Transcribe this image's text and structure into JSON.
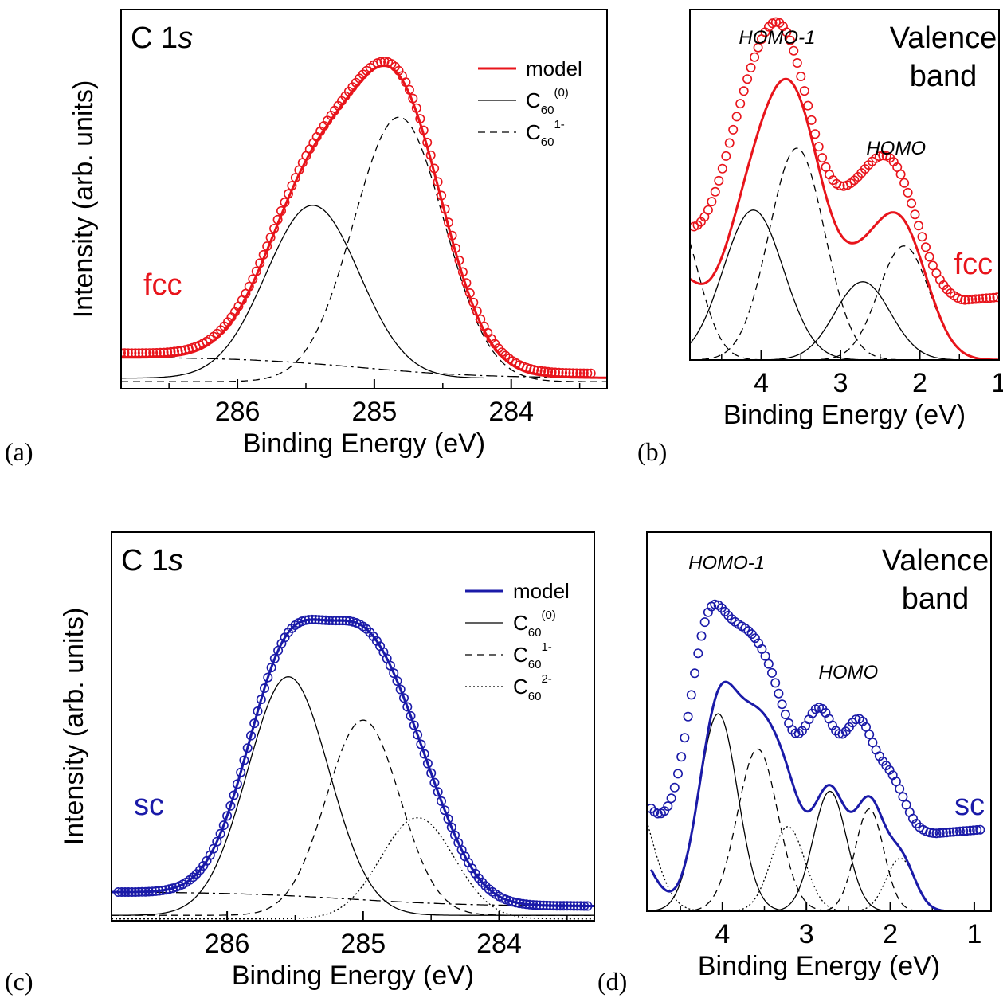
{
  "colors": {
    "fcc": "#e8141b",
    "sc": "#1a1aa8",
    "component": "#000000"
  },
  "panel_labels": [
    "(a)",
    "(b)",
    "(c)",
    "(d)"
  ],
  "chart_data": [
    {
      "id": "a",
      "type": "line",
      "title_main": "C 1",
      "title_italic": "s",
      "sample_label": "fcc",
      "xlabel": "Binding Energy (eV)",
      "ylabel": "Intensity (arb. units)",
      "x_reversed": true,
      "xlim": [
        286.85,
        283.3
      ],
      "ylim": [
        0,
        1.0
      ],
      "xticks": [
        286,
        285,
        284
      ],
      "xtick_labels": [
        "286",
        "285",
        "284"
      ],
      "minor_xticks": [
        286.5,
        285.5,
        284.5,
        283.5
      ],
      "legend": [
        {
          "label": "model",
          "sub": "",
          "sup": "",
          "style": "solid-color"
        },
        {
          "label": "C",
          "sub": "60",
          "sup": "(0)",
          "style": "solid"
        },
        {
          "label": "C",
          "sub": "60",
          "sup": "1-",
          "style": "dashed"
        }
      ],
      "components": [
        {
          "kind": "gauss",
          "center": 285.45,
          "amp": 0.49,
          "sigma": 0.34,
          "base": 0.03,
          "style": "solid",
          "xrange": [
            286.85,
            284.2
          ]
        },
        {
          "kind": "gauss",
          "center": 284.82,
          "amp": 0.75,
          "sigma": 0.33,
          "base": 0.02,
          "style": "dashed",
          "xrange": [
            286.85,
            283.3
          ]
        },
        {
          "kind": "background",
          "left": 0.09,
          "right": 0.03,
          "center": 285.1,
          "width": 0.45,
          "style": "dashdot",
          "xrange": [
            286.85,
            283.3
          ]
        }
      ],
      "model_style": "solid-color",
      "data_points": "model-plus-offset",
      "data_offset": 0.012,
      "data_start": 286.85,
      "data_end": 283.4,
      "data_step": 0.026
    },
    {
      "id": "b",
      "type": "line",
      "title_lines": [
        "Valence",
        "band"
      ],
      "sample_label": "fcc",
      "xlabel": "Binding Energy (eV)",
      "ylabel": "",
      "x_reversed": true,
      "xlim": [
        4.9,
        1.0
      ],
      "ylim": [
        0,
        1.0
      ],
      "xticks": [
        4,
        3,
        2,
        1
      ],
      "xtick_labels": [
        "4",
        "3",
        "2",
        "1"
      ],
      "minor_xticks": [
        4.5,
        3.5,
        2.5,
        1.5
      ],
      "annotations": [
        {
          "text": "HOMO-1",
          "x": 3.8,
          "y": 0.97
        },
        {
          "text": "HOMO",
          "x": 2.3,
          "y": 0.63
        }
      ],
      "components": [
        {
          "kind": "gauss",
          "center": 4.1,
          "amp": 0.46,
          "sigma": 0.38,
          "base": 0.0,
          "style": "solid",
          "xrange": [
            4.9,
            1.0
          ]
        },
        {
          "kind": "gauss",
          "center": 2.72,
          "amp": 0.24,
          "sigma": 0.35,
          "base": 0.0,
          "style": "solid",
          "xrange": [
            4.9,
            1.0
          ]
        },
        {
          "kind": "gauss",
          "center": 3.55,
          "amp": 0.65,
          "sigma": 0.35,
          "base": 0.0,
          "style": "dashed",
          "xrange": [
            4.9,
            1.0
          ]
        },
        {
          "kind": "gauss",
          "center": 2.2,
          "amp": 0.35,
          "sigma": 0.32,
          "base": 0.0,
          "style": "dashed",
          "xrange": [
            4.9,
            1.0
          ]
        },
        {
          "kind": "gauss",
          "center": 5.1,
          "amp": 0.45,
          "sigma": 0.3,
          "base": 0.0,
          "style": "dashed",
          "xrange": [
            4.9,
            1.0
          ]
        }
      ],
      "model_style": "solid-color",
      "model_xrange": [
        4.9,
        1.0
      ],
      "data_points": "sum-shifted",
      "data_offset": 0.155,
      "data_start": 4.85,
      "data_end": 1.0,
      "data_step": 0.045
    },
    {
      "id": "c",
      "type": "line",
      "title_main": "C 1",
      "title_italic": "s",
      "sample_label": "sc",
      "xlabel": "Binding Energy (eV)",
      "ylabel": "Intensity (arb. units)",
      "x_reversed": true,
      "xlim": [
        286.85,
        283.3
      ],
      "ylim": [
        0,
        1.0
      ],
      "xticks": [
        286,
        285,
        284
      ],
      "xtick_labels": [
        "286",
        "285",
        "284"
      ],
      "minor_xticks": [
        286.5,
        285.5,
        284.5,
        283.5
      ],
      "legend": [
        {
          "label": "model",
          "sub": "",
          "sup": "",
          "style": "solid-color"
        },
        {
          "label": "C",
          "sub": "60",
          "sup": "(0)",
          "style": "solid"
        },
        {
          "label": "C",
          "sub": "60",
          "sup": "1-",
          "style": "dashed"
        },
        {
          "label": "C",
          "sub": "60",
          "sup": "2-",
          "style": "dotted"
        }
      ],
      "components": [
        {
          "kind": "gauss",
          "center": 285.55,
          "amp": 0.66,
          "sigma": 0.3,
          "base": 0.015,
          "style": "solid",
          "xrange": [
            286.85,
            283.3
          ]
        },
        {
          "kind": "gauss",
          "center": 285.0,
          "amp": 0.54,
          "sigma": 0.27,
          "base": 0.015,
          "style": "dashed",
          "xrange": [
            286.85,
            283.3
          ]
        },
        {
          "kind": "gauss",
          "center": 284.6,
          "amp": 0.28,
          "sigma": 0.27,
          "base": 0.005,
          "style": "dotted",
          "xrange": [
            286.85,
            283.3
          ]
        },
        {
          "kind": "background",
          "left": 0.08,
          "right": 0.04,
          "center": 285.1,
          "width": 0.45,
          "style": "dashdot",
          "xrange": [
            286.85,
            283.3
          ]
        }
      ],
      "model_style": "solid-color",
      "data_points": "model-plus-offset",
      "data_offset": 0.0,
      "data_start": 286.8,
      "data_end": 283.35,
      "data_step": 0.025
    },
    {
      "id": "d",
      "type": "line",
      "title_lines": [
        "Valence",
        "band"
      ],
      "sample_label": "sc",
      "xlabel": "Binding Energy (eV)",
      "ylabel": "",
      "x_reversed": true,
      "xlim": [
        4.9,
        0.8
      ],
      "ylim": [
        0,
        1.0
      ],
      "xticks": [
        4,
        3,
        2,
        1
      ],
      "xtick_labels": [
        "4",
        "3",
        "2",
        "1"
      ],
      "minor_xticks": [
        4.5,
        3.5,
        2.5,
        1.5
      ],
      "annotations": [
        {
          "text": "HOMO-1",
          "x": 3.95,
          "y": 0.97
        },
        {
          "text": "HOMO",
          "x": 2.5,
          "y": 0.66
        }
      ],
      "components": [
        {
          "kind": "gauss",
          "center": 4.05,
          "amp": 0.56,
          "sigma": 0.23,
          "base": 0.0,
          "style": "solid",
          "xrange": [
            4.9,
            0.8
          ]
        },
        {
          "kind": "gauss",
          "center": 2.72,
          "amp": 0.34,
          "sigma": 0.2,
          "base": 0.0,
          "style": "solid",
          "xrange": [
            4.9,
            0.8
          ]
        },
        {
          "kind": "gauss",
          "center": 3.58,
          "amp": 0.46,
          "sigma": 0.24,
          "base": 0.0,
          "style": "dashed",
          "xrange": [
            4.9,
            0.8
          ]
        },
        {
          "kind": "gauss",
          "center": 2.25,
          "amp": 0.29,
          "sigma": 0.17,
          "base": 0.0,
          "style": "dashed",
          "xrange": [
            4.9,
            0.8
          ]
        },
        {
          "kind": "gauss",
          "center": 3.22,
          "amp": 0.24,
          "sigma": 0.2,
          "base": 0.0,
          "style": "dotted",
          "xrange": [
            4.9,
            0.8
          ]
        },
        {
          "kind": "gauss",
          "center": 1.88,
          "amp": 0.15,
          "sigma": 0.17,
          "base": 0.0,
          "style": "dotted",
          "xrange": [
            4.9,
            0.8
          ]
        },
        {
          "kind": "gauss",
          "center": 5.1,
          "amp": 0.35,
          "sigma": 0.25,
          "base": 0.0,
          "style": "dotted",
          "xrange": [
            4.9,
            0.8
          ]
        }
      ],
      "model_style": "solid-color",
      "model_xrange": [
        4.85,
        1.1
      ],
      "data_points": "sum-shifted",
      "data_offset": 0.2,
      "data_start": 4.85,
      "data_end": 0.9,
      "data_step": 0.04
    }
  ]
}
